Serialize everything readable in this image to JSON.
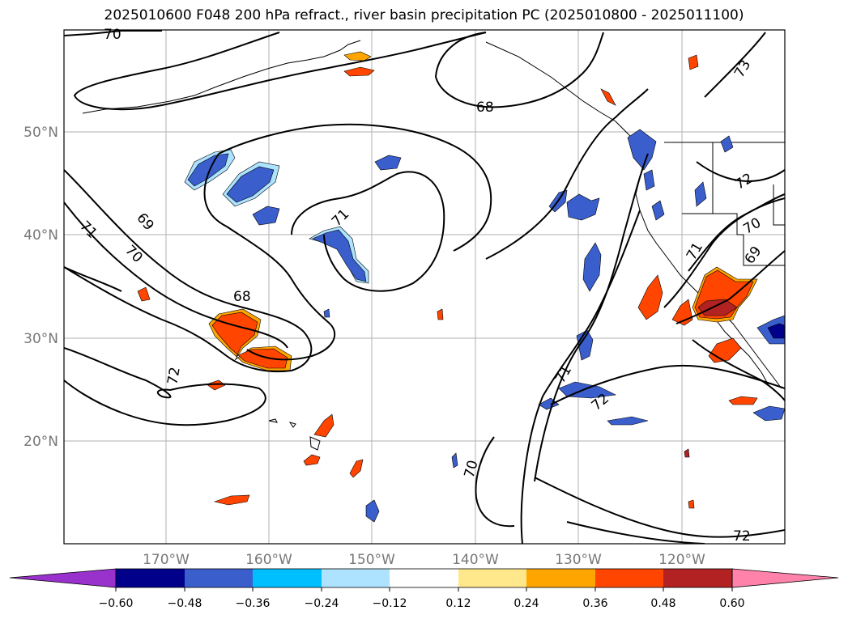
{
  "title": "2025010600 F048 200 hPa refract., river basin precipitation PC (2025010800 - 2025011100)",
  "map": {
    "lat_labels": [
      "50°N",
      "40°N",
      "30°N",
      "20°N"
    ],
    "lon_labels": [
      "170°W",
      "160°W",
      "150°W",
      "140°W",
      "130°W",
      "120°W"
    ],
    "contour_labels": [
      "70",
      "68",
      "73",
      "72",
      "69",
      "71",
      "70",
      "71",
      "72",
      "68",
      "71",
      "70",
      "69",
      "71",
      "72",
      "70",
      "72"
    ]
  },
  "colorbar": {
    "tick_labels": [
      "−0.60",
      "−0.48",
      "−0.36",
      "−0.24",
      "−0.12",
      "0.12",
      "0.24",
      "0.36",
      "0.48",
      "0.60"
    ],
    "colors": [
      "#9932CC",
      "#00008B",
      "#3A5FCD",
      "#00BFFF",
      "#ADE3FF",
      "#FFFFFF",
      "#FFE88C",
      "#FFA500",
      "#FF4500",
      "#B22222",
      "#FF82AB"
    ]
  },
  "style": {
    "negative_fill": "#3A5FCD",
    "positive_fill": "#FF4500",
    "light_negative": "#ADE3FF",
    "light_positive": "#FFE88C",
    "grid_color": "#b0b0b0"
  }
}
